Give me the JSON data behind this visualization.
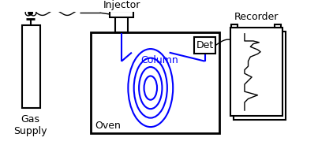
{
  "bg_color": "#ffffff",
  "line_color": "#000000",
  "blue_color": "#0000ff",
  "lw": 1.5,
  "lw_thin": 1.0,
  "labels": {
    "gas_supply": "Gas\nSupply",
    "injector": "Injector",
    "column": "Column",
    "oven": "Oven",
    "det": "Det",
    "recorder": "Recorder"
  },
  "figsize": [
    4.03,
    1.84
  ],
  "dpi": 100
}
